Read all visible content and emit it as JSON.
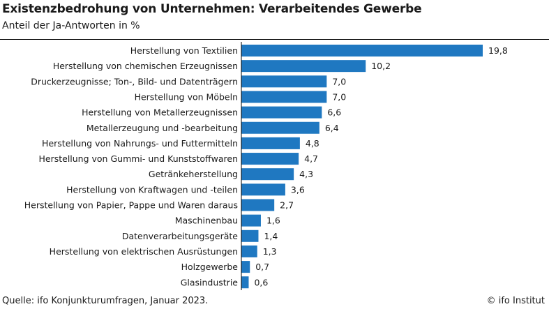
{
  "header": {
    "title": "Existenzbedrohung von Unternehmen: Verarbeitendes Gewerbe",
    "subtitle": "Anteil der Ja-Antworten in %"
  },
  "footer": {
    "source": "Quelle: ifo Konjunkturumfragen, Januar 2023.",
    "copyright": "© ifo Institut"
  },
  "colors": {
    "bar": "#1f78c1",
    "axis": "#000000"
  },
  "chart_data": {
    "type": "bar",
    "orientation": "horizontal",
    "title": "Existenzbedrohung von Unternehmen: Verarbeitendes Gewerbe",
    "subtitle": "Anteil der Ja-Antworten in %",
    "categories": [
      "Herstellung von Textilien",
      "Herstellung von chemischen Erzeugnissen",
      "Druckerzeugnisse; Ton-, Bild- und Datenträgern",
      "Herstellung von Möbeln",
      "Herstellung von Metallerzeugnissen",
      "Metallerzeugung und -bearbeitung",
      "Herstellung von Nahrungs- und Futtermitteln",
      "Herstellung von Gummi- und Kunststoffwaren",
      "Getränkeherstellung",
      "Herstellung von Kraftwagen und -teilen",
      "Herstellung von Papier, Pappe und Waren daraus",
      "Maschinenbau",
      "Datenverarbeitungsgeräte",
      "Herstellung von elektrischen Ausrüstungen",
      "Holzgewerbe",
      "Glasindustrie"
    ],
    "values": [
      19.8,
      10.2,
      7.0,
      7.0,
      6.6,
      6.4,
      4.8,
      4.7,
      4.3,
      3.6,
      2.7,
      1.6,
      1.4,
      1.3,
      0.7,
      0.6
    ],
    "value_labels": [
      "19,8",
      "10,2",
      "7,0",
      "7,0",
      "6,6",
      "6,4",
      "4,8",
      "4,7",
      "4,3",
      "3,6",
      "2,7",
      "1,6",
      "1,4",
      "1,3",
      "0,7",
      "0,6"
    ],
    "xlim": [
      0,
      20
    ],
    "grid": false,
    "legend": "none"
  }
}
